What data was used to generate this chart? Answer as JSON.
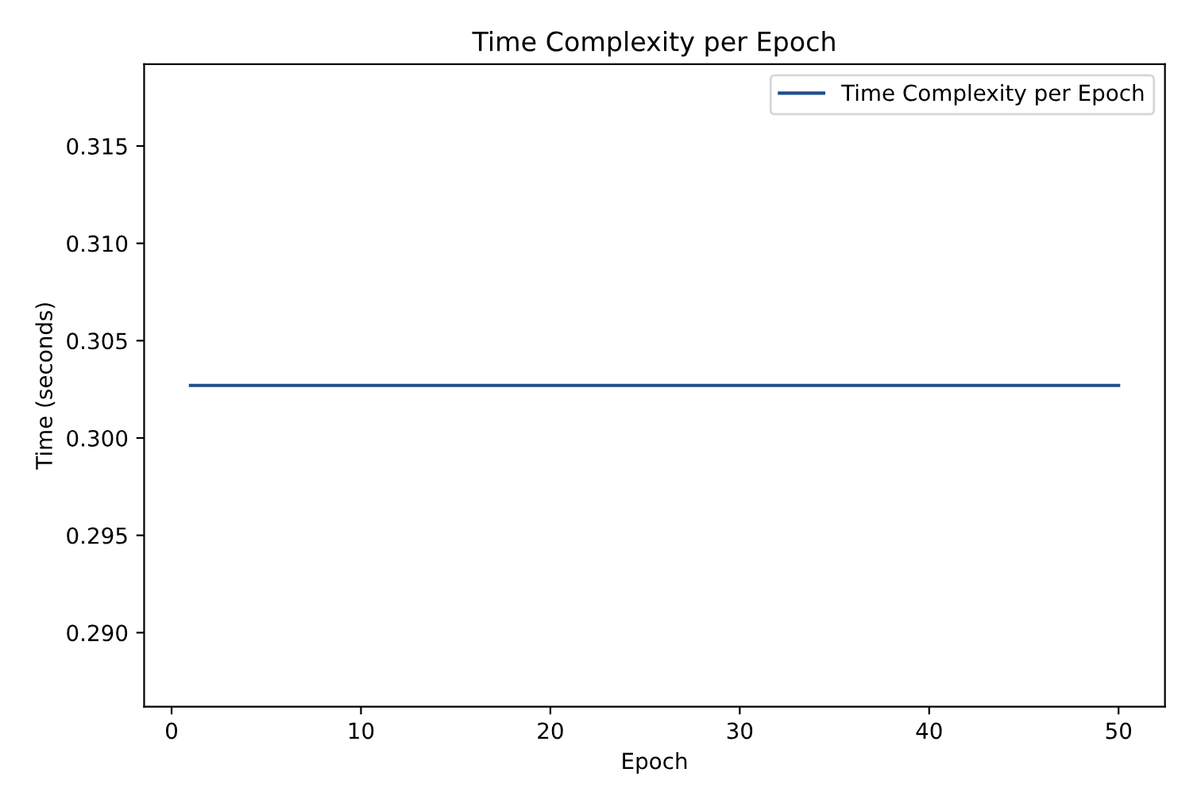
{
  "chart_data": {
    "type": "line",
    "title": "Time Complexity per Epoch",
    "xlabel": "Epoch",
    "ylabel": "Time (seconds)",
    "x": [
      1,
      50
    ],
    "series": [
      {
        "name": "Time Complexity per Epoch",
        "color": "#1f4e8c",
        "values": [
          0.3027,
          0.3027
        ]
      }
    ],
    "xlim": [
      -1.45,
      52.45
    ],
    "ylim": [
      0.2862,
      0.3192
    ],
    "xticks": [
      0,
      10,
      20,
      30,
      40,
      50
    ],
    "yticks": [
      {
        "value": 0.29,
        "label": "0.290"
      },
      {
        "value": 0.295,
        "label": "0.295"
      },
      {
        "value": 0.3,
        "label": "0.300"
      },
      {
        "value": 0.305,
        "label": "0.305"
      },
      {
        "value": 0.31,
        "label": "0.310"
      },
      {
        "value": 0.315,
        "label": "0.315"
      }
    ],
    "legend": "top right",
    "grid": false,
    "line_style": "solid",
    "marker": "none"
  }
}
